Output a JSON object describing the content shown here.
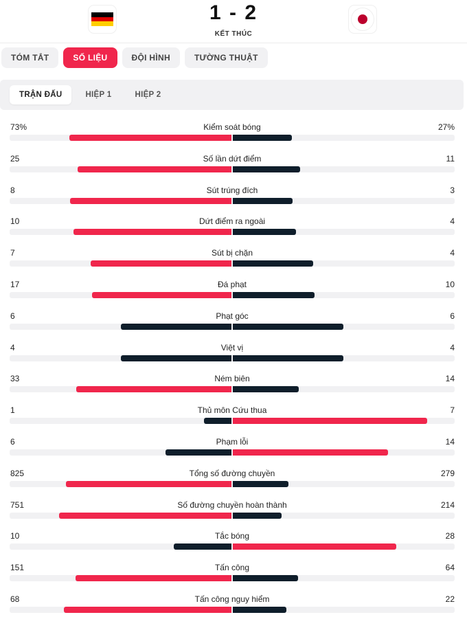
{
  "match": {
    "score": "1 - 2",
    "status": "KẾT THÚC",
    "home_flag": "germany-flag",
    "away_flag": "japan-flag"
  },
  "tabs": [
    {
      "label": "TÓM TẮT",
      "active": false
    },
    {
      "label": "SỐ LIỆU",
      "active": true
    },
    {
      "label": "ĐỘI HÌNH",
      "active": false
    },
    {
      "label": "TƯỜNG THUẬT",
      "active": false
    }
  ],
  "subtabs": [
    {
      "label": "TRẬN ĐẤU",
      "active": true
    },
    {
      "label": "HIỆP 1",
      "active": false
    },
    {
      "label": "HIỆP 2",
      "active": false
    }
  ],
  "colors": {
    "accent": "#f0264c",
    "dark": "#0f1e2b",
    "track": "#f1f1f3"
  },
  "stats": [
    {
      "label": "Kiểm soát bóng",
      "home": "73%",
      "away": "27%",
      "home_val": 73,
      "away_val": 27
    },
    {
      "label": "Số lần dứt điểm",
      "home": "25",
      "away": "11",
      "home_val": 25,
      "away_val": 11
    },
    {
      "label": "Sút trúng đích",
      "home": "8",
      "away": "3",
      "home_val": 8,
      "away_val": 3
    },
    {
      "label": "Dứt điểm ra ngoài",
      "home": "10",
      "away": "4",
      "home_val": 10,
      "away_val": 4
    },
    {
      "label": "Sút bị chặn",
      "home": "7",
      "away": "4",
      "home_val": 7,
      "away_val": 4
    },
    {
      "label": "Đá phạt",
      "home": "17",
      "away": "10",
      "home_val": 17,
      "away_val": 10
    },
    {
      "label": "Phạt góc",
      "home": "6",
      "away": "6",
      "home_val": 6,
      "away_val": 6
    },
    {
      "label": "Việt vị",
      "home": "4",
      "away": "4",
      "home_val": 4,
      "away_val": 4
    },
    {
      "label": "Ném biên",
      "home": "33",
      "away": "14",
      "home_val": 33,
      "away_val": 14
    },
    {
      "label": "Thủ môn Cứu thua",
      "home": "1",
      "away": "7",
      "home_val": 1,
      "away_val": 7
    },
    {
      "label": "Phạm lỗi",
      "home": "6",
      "away": "14",
      "home_val": 6,
      "away_val": 14
    },
    {
      "label": "Tổng số đường chuyền",
      "home": "825",
      "away": "279",
      "home_val": 825,
      "away_val": 279
    },
    {
      "label": "Số đường chuyền hoàn thành",
      "home": "751",
      "away": "214",
      "home_val": 751,
      "away_val": 214
    },
    {
      "label": "Tắc bóng",
      "home": "10",
      "away": "28",
      "home_val": 10,
      "away_val": 28
    },
    {
      "label": "Tấn công",
      "home": "151",
      "away": "64",
      "home_val": 151,
      "away_val": 64
    },
    {
      "label": "Tấn công nguy hiểm",
      "home": "68",
      "away": "22",
      "home_val": 68,
      "away_val": 22
    }
  ]
}
